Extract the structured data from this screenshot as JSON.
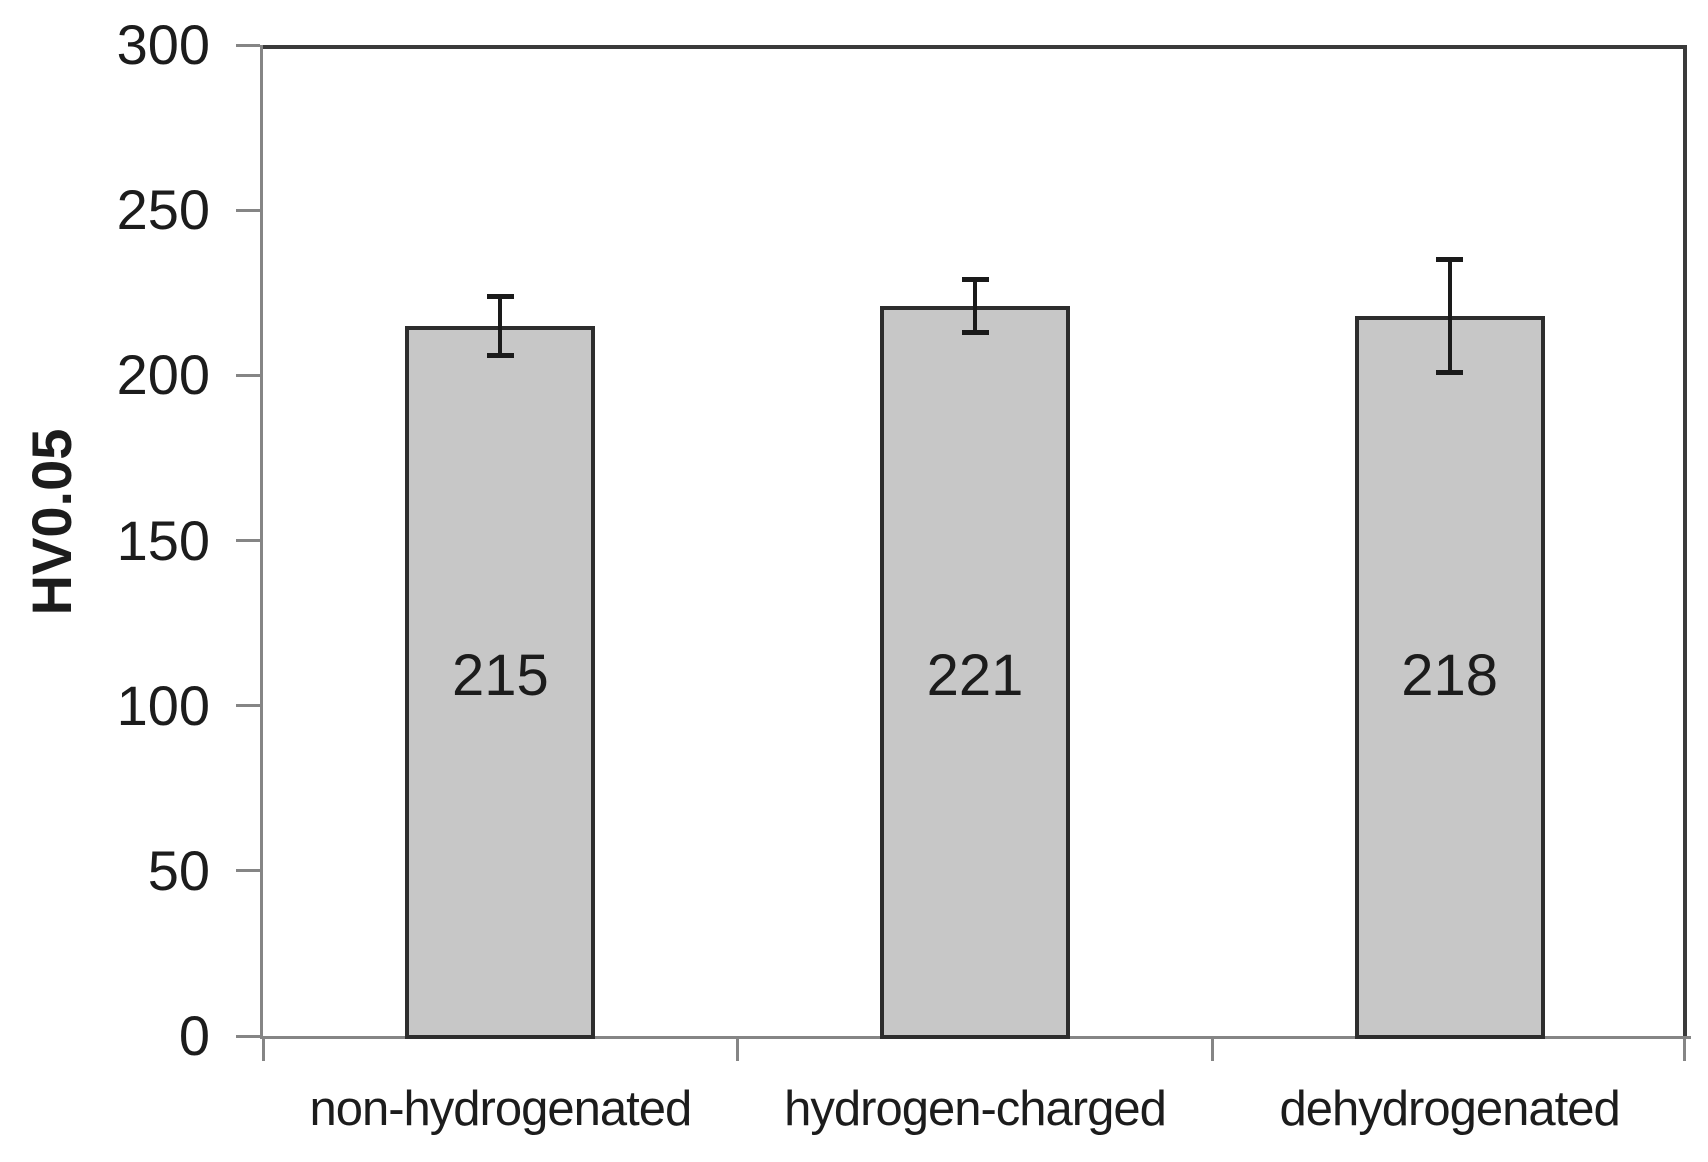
{
  "chart_data": {
    "type": "bar",
    "title": "",
    "xlabel": "",
    "ylabel": "HV0.05",
    "categories": [
      "non-hydrogenated",
      "hydrogen-charged",
      "dehydrogenated"
    ],
    "values": [
      215,
      221,
      218
    ],
    "value_labels": [
      "215",
      "221",
      "218"
    ],
    "error_bars_plus": [
      9,
      8,
      17
    ],
    "error_bars_minus": [
      9,
      8,
      17
    ],
    "ylim": [
      0,
      300
    ],
    "yticks": [
      0,
      50,
      100,
      150,
      200,
      250,
      300
    ],
    "grid": "off",
    "legend": "none",
    "colors": {
      "background": "#ffffff",
      "bar_fill": "#c7c7c7",
      "bar_border": "#2d2d2d",
      "axis_line": "#858585",
      "plot_border": "#3a3a3a",
      "error_bar": "#1a1a1a",
      "text": "#1c1c1c"
    }
  }
}
